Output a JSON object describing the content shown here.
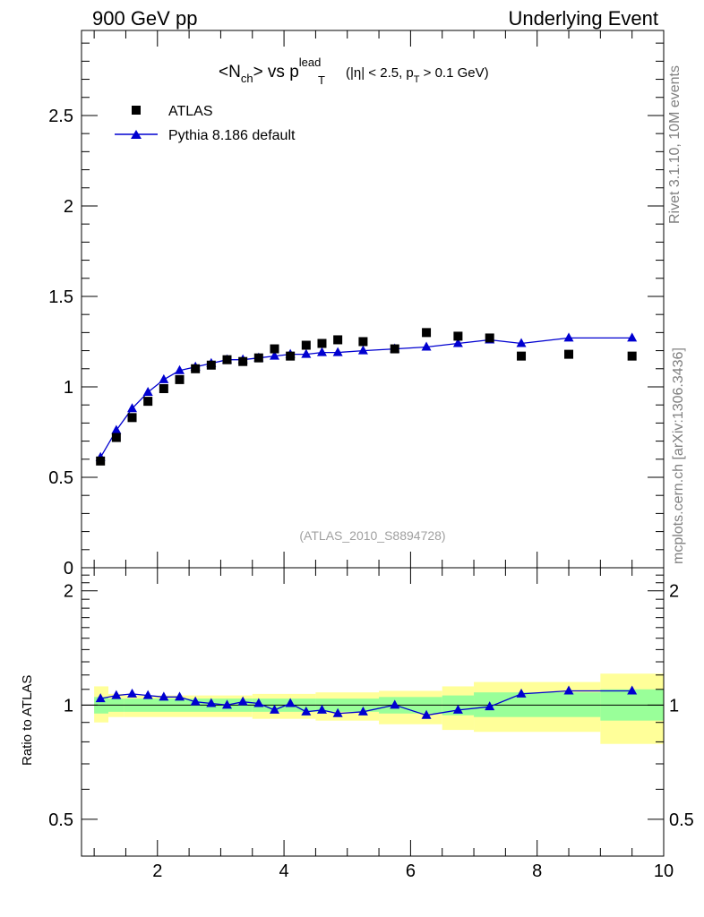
{
  "header": {
    "left": "900 GeV pp",
    "right": "Underlying Event"
  },
  "side_labels": {
    "rivet": "Rivet 3.1.10,  10M events",
    "mcplots": "mcplots.cern.ch [arXiv:1306.3436]"
  },
  "title": {
    "main": "<N",
    "main_sub": "ch",
    "vs": "> vs p",
    "vs_sup": "lead",
    "vs_sub": "T",
    "cut_a": "(|η| < 2.5, p",
    "cut_sub": "T",
    "cut_b": " > 0.1 GeV)"
  },
  "legend": {
    "data": "ATLAS",
    "mc": "Pythia 8.186 default"
  },
  "analysis_tag": "(ATLAS_2010_S8894728)",
  "ratio_ylabel": "Ratio to ATLAS",
  "colors": {
    "mc_line": "#0000d0",
    "band_inner": "#99ff99",
    "band_outer": "#ffff99",
    "text_grey": "#808080"
  },
  "chart_data": {
    "type": "scatter",
    "main": {
      "xlim": [
        0.8,
        10.0
      ],
      "ylim": [
        0,
        2.97
      ],
      "yticks": [
        0,
        0.5,
        1,
        1.5,
        2,
        2.5
      ],
      "ytick_labels": [
        "0",
        "0.5",
        "1",
        "1.5",
        "2",
        "2.5"
      ],
      "series": [
        {
          "name": "ATLAS",
          "x": [
            1.1,
            1.35,
            1.6,
            1.85,
            2.1,
            2.35,
            2.6,
            2.85,
            3.1,
            3.35,
            3.6,
            3.85,
            4.1,
            4.35,
            4.6,
            4.85,
            5.25,
            5.75,
            6.25,
            6.75,
            7.25,
            7.75,
            8.5,
            9.5
          ],
          "values": [
            0.59,
            0.72,
            0.83,
            0.92,
            0.99,
            1.04,
            1.1,
            1.12,
            1.15,
            1.14,
            1.16,
            1.21,
            1.17,
            1.23,
            1.24,
            1.26,
            1.25,
            1.21,
            1.3,
            1.28,
            1.27,
            1.17,
            1.18,
            1.17
          ]
        },
        {
          "name": "Pythia 8.186 default",
          "x": [
            1.1,
            1.35,
            1.6,
            1.85,
            2.1,
            2.35,
            2.6,
            2.85,
            3.1,
            3.35,
            3.6,
            3.85,
            4.1,
            4.35,
            4.6,
            4.85,
            5.25,
            5.75,
            6.25,
            6.75,
            7.25,
            7.75,
            8.5,
            9.5
          ],
          "values": [
            0.61,
            0.76,
            0.88,
            0.97,
            1.04,
            1.09,
            1.11,
            1.13,
            1.15,
            1.15,
            1.16,
            1.17,
            1.18,
            1.18,
            1.19,
            1.19,
            1.2,
            1.21,
            1.22,
            1.24,
            1.26,
            1.24,
            1.27,
            1.27
          ]
        }
      ]
    },
    "ratio": {
      "xlabel": "",
      "ylabel": "Ratio to ATLAS",
      "xlim": [
        0.8,
        10.0
      ],
      "ylim": [
        0.4,
        2.3
      ],
      "log_y": true,
      "xticks": [
        2,
        4,
        6,
        8,
        10
      ],
      "xtick_labels": [
        "2",
        "4",
        "6",
        "8",
        "10"
      ],
      "yticks": [
        0.5,
        1,
        2
      ],
      "ytick_labels": [
        "0.5",
        "1",
        "2"
      ],
      "mc_ratio": [
        1.04,
        1.06,
        1.07,
        1.06,
        1.05,
        1.05,
        1.02,
        1.01,
        1.0,
        1.02,
        1.01,
        0.97,
        1.01,
        0.96,
        0.97,
        0.95,
        0.96,
        1.0,
        0.94,
        0.97,
        0.99,
        1.07,
        1.09,
        1.09
      ],
      "bands": [
        {
          "x0": 1.0,
          "x1": 1.225,
          "inner": [
            0.95,
            1.05
          ],
          "outer": [
            0.9,
            1.12
          ]
        },
        {
          "x0": 1.225,
          "x1": 1.475,
          "inner": [
            0.96,
            1.04
          ],
          "outer": [
            0.93,
            1.07
          ]
        },
        {
          "x0": 1.475,
          "x1": 3.5,
          "inner": [
            0.96,
            1.04
          ],
          "outer": [
            0.93,
            1.06
          ]
        },
        {
          "x0": 3.5,
          "x1": 4.5,
          "inner": [
            0.96,
            1.04
          ],
          "outer": [
            0.92,
            1.07
          ]
        },
        {
          "x0": 4.5,
          "x1": 5.5,
          "inner": [
            0.96,
            1.04
          ],
          "outer": [
            0.91,
            1.08
          ]
        },
        {
          "x0": 5.5,
          "x1": 6.5,
          "inner": [
            0.95,
            1.05
          ],
          "outer": [
            0.89,
            1.09
          ]
        },
        {
          "x0": 6.5,
          "x1": 7.0,
          "inner": [
            0.94,
            1.06
          ],
          "outer": [
            0.86,
            1.12
          ]
        },
        {
          "x0": 7.0,
          "x1": 9.0,
          "inner": [
            0.93,
            1.08
          ],
          "outer": [
            0.85,
            1.15
          ]
        },
        {
          "x0": 9.0,
          "x1": 10.0,
          "inner": [
            0.91,
            1.1
          ],
          "outer": [
            0.79,
            1.21
          ]
        }
      ]
    }
  }
}
